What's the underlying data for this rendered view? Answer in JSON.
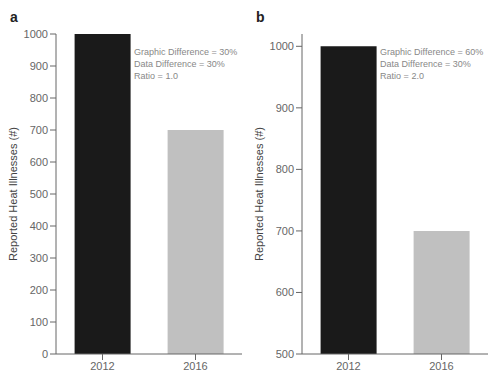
{
  "chart_data": [
    {
      "type": "bar",
      "title": "a",
      "categories": [
        "2012",
        "2016"
      ],
      "values": [
        1000,
        700
      ],
      "colors": [
        "#1a1a1a",
        "#c0c0c0"
      ],
      "ylim": [
        0,
        1000
      ],
      "yticks": [
        0,
        100,
        200,
        300,
        400,
        500,
        600,
        700,
        800,
        900,
        1000
      ],
      "ylabel": "Reported Heat Illnesses (#)",
      "annotation": "Graphic Difference = 30%\nData Difference = 30%\nRatio = 1.0"
    },
    {
      "type": "bar",
      "title": "b",
      "categories": [
        "2012",
        "2016"
      ],
      "values": [
        1000,
        700
      ],
      "colors": [
        "#1a1a1a",
        "#c0c0c0"
      ],
      "ylim": [
        500,
        1020
      ],
      "yticks": [
        500,
        600,
        700,
        800,
        900,
        1000
      ],
      "ylabel": "Reported Heat Illnesses (#)",
      "annotation": "Graphic Difference = 60%\nData Difference = 30%\nRatio = 2.0"
    }
  ]
}
